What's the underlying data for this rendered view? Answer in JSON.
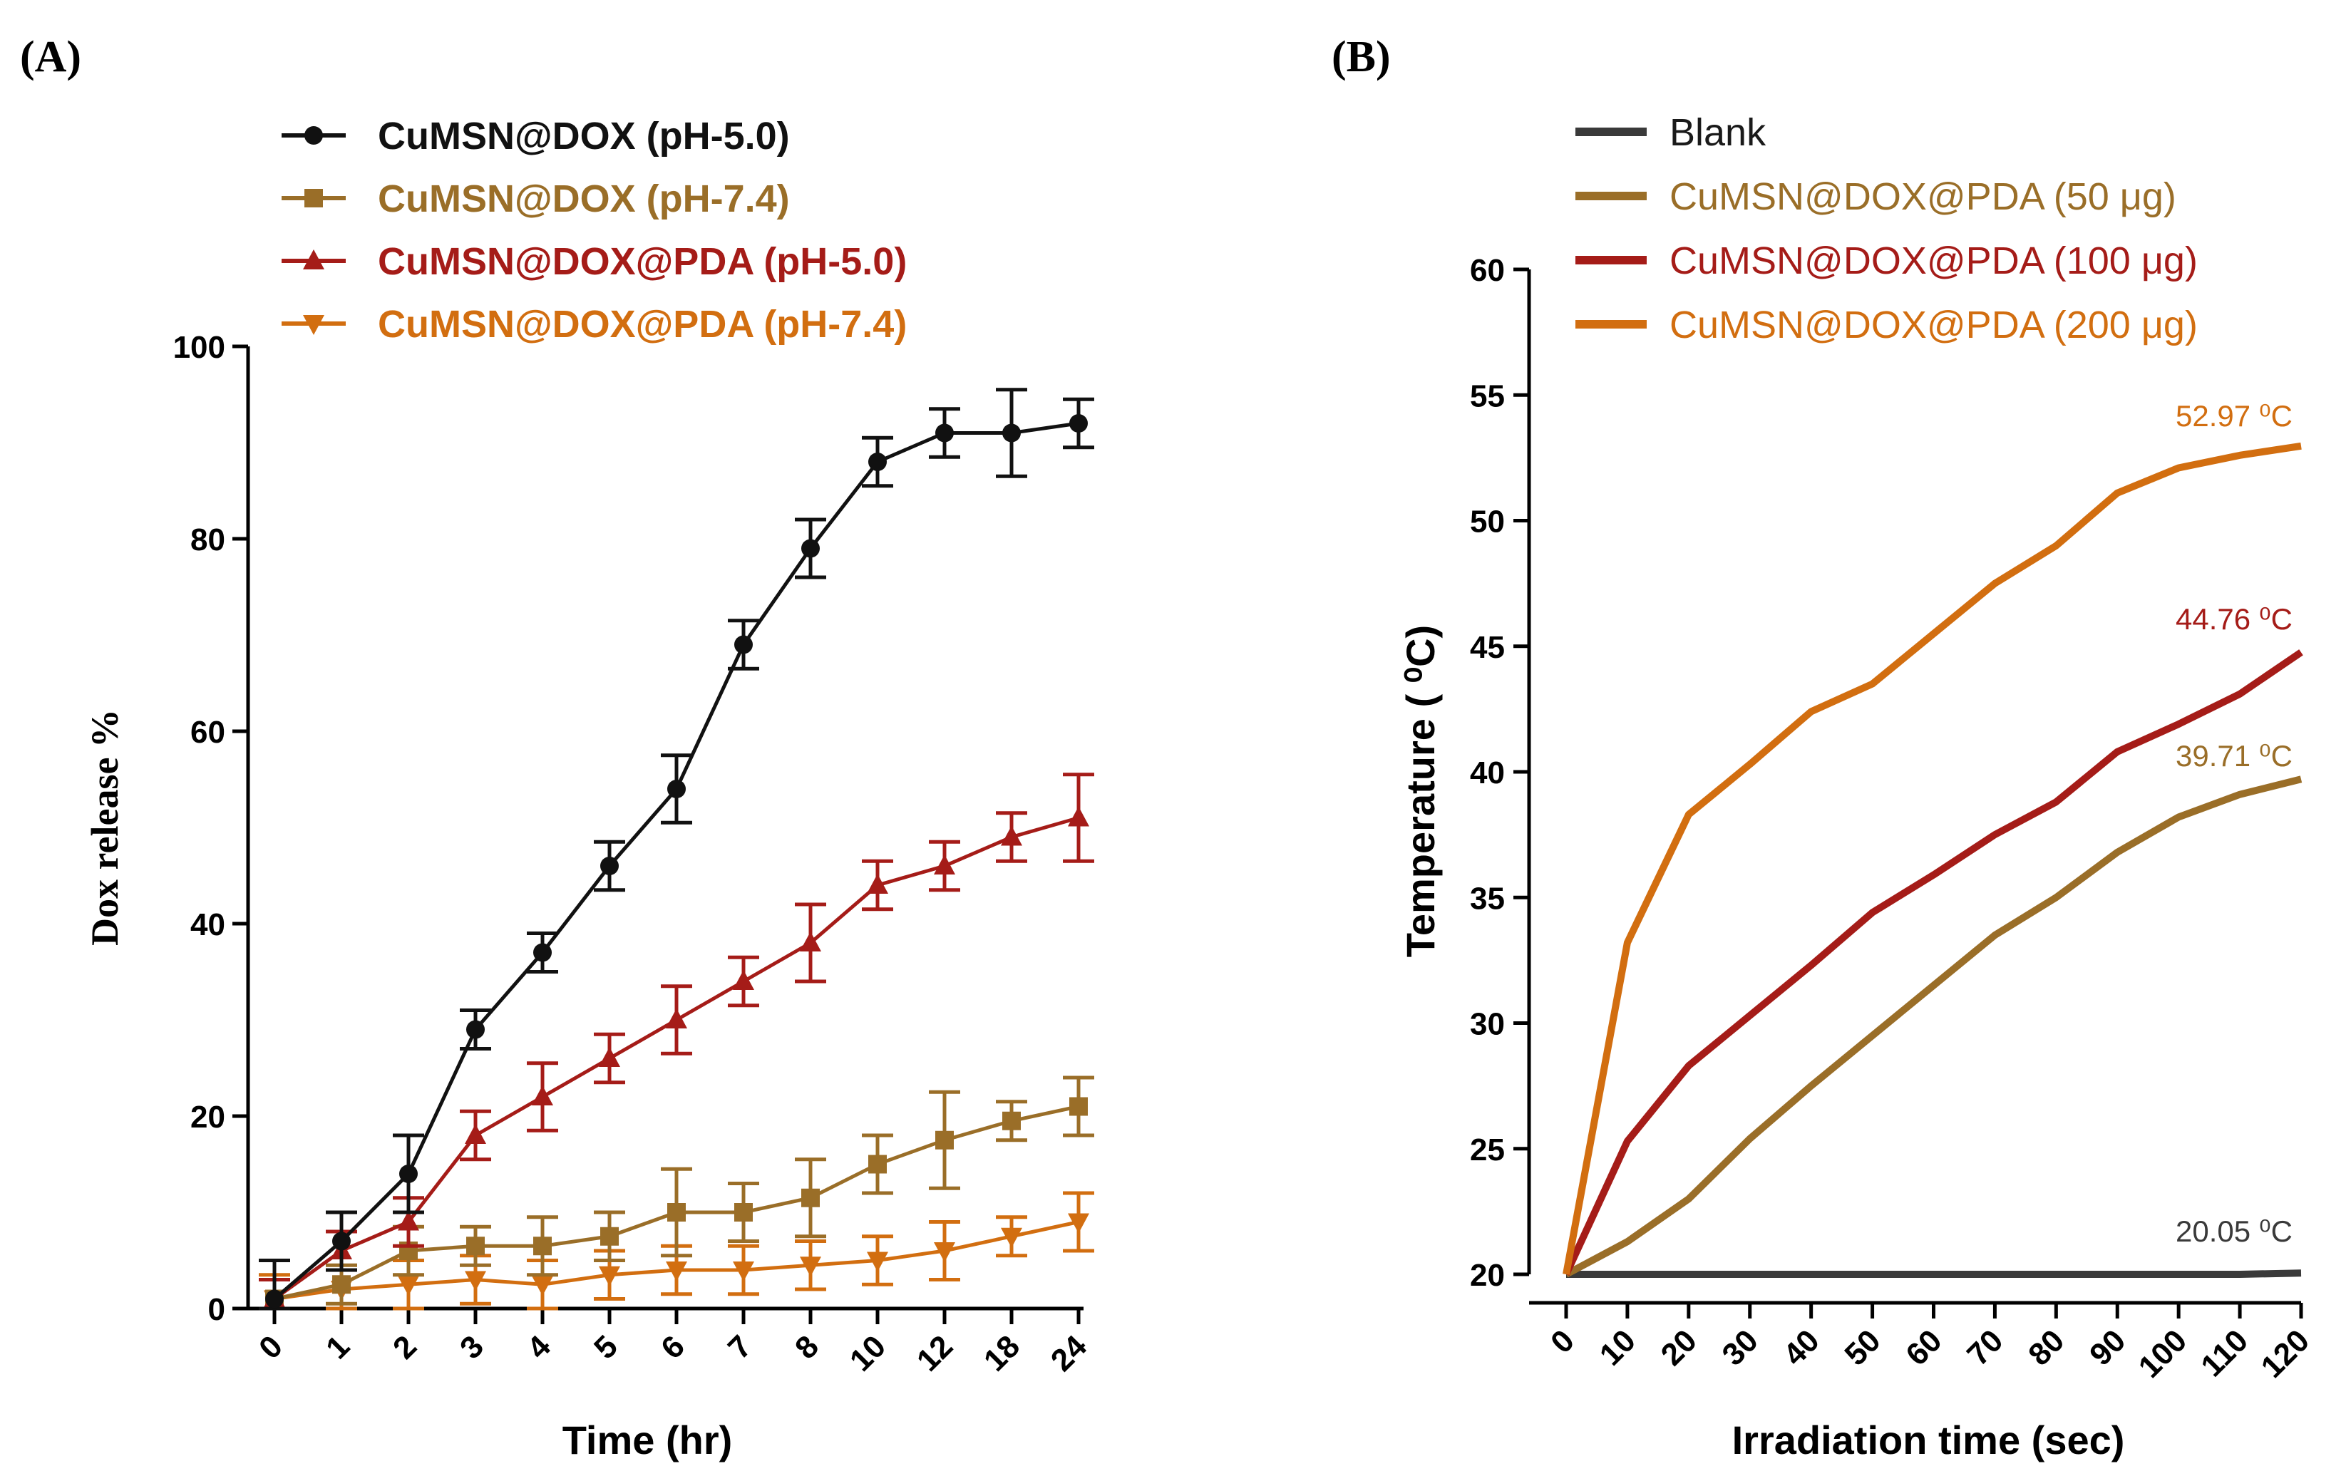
{
  "chart_data": [
    {
      "panel_label": "(A)",
      "type": "line",
      "xlabel": "Time (hr)",
      "ylabel": "Dox release %",
      "categories": [
        "0",
        "1",
        "2",
        "3",
        "4",
        "5",
        "6",
        "7",
        "8",
        "10",
        "12",
        "18",
        "24"
      ],
      "ylim": [
        0,
        100
      ],
      "yticks": [
        0,
        20,
        40,
        60,
        80,
        100
      ],
      "legend_position": "top",
      "series": [
        {
          "name": "CuMSN@DOX (pH-5.0)",
          "color": "#111111",
          "marker": "circle",
          "values": [
            1,
            7,
            14,
            29,
            37,
            46,
            54,
            69,
            79,
            88,
            91,
            91,
            92
          ],
          "errors": [
            4,
            3,
            4,
            2,
            2,
            2.5,
            3.5,
            2.5,
            3,
            2.5,
            2.5,
            4.5,
            2.5
          ]
        },
        {
          "name": "CuMSN@DOX (pH-7.4)",
          "color": "#9A6E28",
          "marker": "square",
          "values": [
            1,
            2.5,
            6,
            6.5,
            6.5,
            7.5,
            10,
            10,
            11.5,
            15,
            17.5,
            19.5,
            21
          ],
          "errors": [
            2,
            2,
            2.5,
            2,
            3,
            2.5,
            4.5,
            3,
            4,
            3,
            5,
            2,
            3
          ]
        },
        {
          "name": "CuMSN@DOX@PDA (pH-5.0)",
          "color": "#A51C18",
          "marker": "triangle-up",
          "values": [
            1,
            6,
            9,
            18,
            22,
            26,
            30,
            34,
            38,
            44,
            46,
            49,
            51
          ],
          "errors": [
            2,
            2,
            2.5,
            2.5,
            3.5,
            2.5,
            3.5,
            2.5,
            4,
            2.5,
            2.5,
            2.5,
            4.5
          ]
        },
        {
          "name": "CuMSN@DOX@PDA (pH-7.4)",
          "color": "#D26E10",
          "marker": "triangle-down",
          "values": [
            1,
            2,
            2.5,
            3,
            2.5,
            3.5,
            4,
            4,
            4.5,
            5,
            6,
            7.5,
            9
          ],
          "errors": [
            2.5,
            2,
            2.5,
            2.5,
            2.5,
            2.5,
            2.5,
            2.5,
            2.5,
            2.5,
            3,
            2,
            3
          ]
        }
      ]
    },
    {
      "panel_label": "(B)",
      "type": "line",
      "xlabel": "Irradiation time (sec)",
      "ylabel": "Temperature ( ⁰C)",
      "x": [
        0,
        10,
        20,
        30,
        40,
        50,
        60,
        70,
        80,
        90,
        100,
        110,
        120
      ],
      "xticks": [
        "0",
        "10",
        "20",
        "30",
        "40",
        "50",
        "60",
        "70",
        "80",
        "90",
        "100",
        "110",
        "120"
      ],
      "ylim": [
        20,
        60
      ],
      "yticks": [
        20,
        25,
        30,
        35,
        40,
        45,
        50,
        55,
        60
      ],
      "legend_position": "top-left",
      "series": [
        {
          "name": "Blank",
          "color": "#3A3A3A",
          "values": [
            20,
            20,
            20,
            20,
            20,
            20,
            20,
            20,
            20,
            20,
            20,
            20,
            20.05
          ],
          "end_label": "20.05 ⁰C"
        },
        {
          "name": "CuMSN@DOX@PDA (50 μg)",
          "color": "#9A6E28",
          "values": [
            20,
            21.3,
            23,
            25.4,
            27.5,
            29.5,
            31.5,
            33.5,
            35,
            36.8,
            38.2,
            39.1,
            39.71
          ],
          "end_label": "39.71 ⁰C"
        },
        {
          "name": "CuMSN@DOX@PDA (100 μg)",
          "color": "#A51C18",
          "values": [
            20,
            25.3,
            28.3,
            30.3,
            32.3,
            34.4,
            35.9,
            37.5,
            38.8,
            40.8,
            41.9,
            43.1,
            44.76
          ],
          "end_label": "44.76 ⁰C"
        },
        {
          "name": "CuMSN@DOX@PDA (200 μg)",
          "color": "#D26E10",
          "values": [
            20,
            33.2,
            38.3,
            40.3,
            42.4,
            43.5,
            45.5,
            47.5,
            49,
            51.1,
            52.1,
            52.6,
            52.97
          ],
          "end_label": "52.97 ⁰C"
        }
      ]
    }
  ]
}
